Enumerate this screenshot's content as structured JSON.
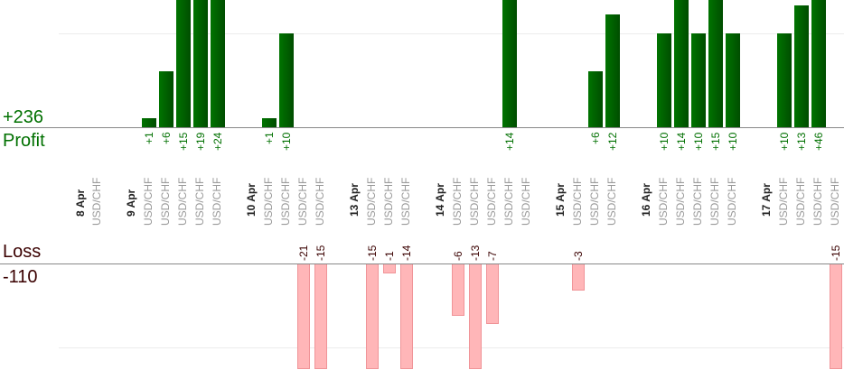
{
  "chart_data": {
    "type": "bar",
    "profit_total": "+236",
    "profit_label": "Profit",
    "loss_label": "Loss",
    "loss_total": "-110",
    "colors": {
      "profit": "#006400",
      "loss": "#ffb6b8",
      "profit_text": "#007000",
      "loss_text": "#3a0000"
    },
    "days": [
      {
        "date": "8 Apr",
        "trades": [
          {
            "pair": "USD/CHF",
            "value": null
          }
        ]
      },
      {
        "date": "9 Apr",
        "trades": [
          {
            "pair": "USD/CHF",
            "value": 1
          },
          {
            "pair": "USD/CHF",
            "value": 6
          },
          {
            "pair": "USD/CHF",
            "value": 15
          },
          {
            "pair": "USD/CHF",
            "value": 19
          },
          {
            "pair": "USD/CHF",
            "value": 24
          }
        ]
      },
      {
        "date": "10 Apr",
        "trades": [
          {
            "pair": "USD/CHF",
            "value": 1
          },
          {
            "pair": "USD/CHF",
            "value": 10
          },
          {
            "pair": "USD/CHF",
            "value": -21
          },
          {
            "pair": "USD/CHF",
            "value": -15
          }
        ]
      },
      {
        "date": "13 Apr",
        "trades": [
          {
            "pair": "USD/CHF",
            "value": -15
          },
          {
            "pair": "USD/CHF",
            "value": -1
          },
          {
            "pair": "USD/CHF",
            "value": -14
          }
        ]
      },
      {
        "date": "14 Apr",
        "trades": [
          {
            "pair": "USD/CHF",
            "value": -6
          },
          {
            "pair": "USD/CHF",
            "value": -13
          },
          {
            "pair": "USD/CHF",
            "value": -7
          },
          {
            "pair": "USD/CHF",
            "value": 14
          },
          {
            "pair": "USD/CHF",
            "value": null
          }
        ]
      },
      {
        "date": "15 Apr",
        "trades": [
          {
            "pair": "USD/CHF",
            "value": -3
          },
          {
            "pair": "USD/CHF",
            "value": 6
          },
          {
            "pair": "USD/CHF",
            "value": 12
          }
        ]
      },
      {
        "date": "16 Apr",
        "trades": [
          {
            "pair": "USD/CHF",
            "value": 10
          },
          {
            "pair": "USD/CHF",
            "value": 14
          },
          {
            "pair": "USD/CHF",
            "value": 10
          },
          {
            "pair": "USD/CHF",
            "value": 15
          },
          {
            "pair": "USD/CHF",
            "value": 10
          }
        ]
      },
      {
        "date": "17 Apr",
        "trades": [
          {
            "pair": "USD/CHF",
            "value": 10
          },
          {
            "pair": "USD/CHF",
            "value": 13
          },
          {
            "pair": "USD/CHF",
            "value": 46
          },
          {
            "pair": "USD/CHF",
            "value": -15
          }
        ]
      }
    ]
  }
}
